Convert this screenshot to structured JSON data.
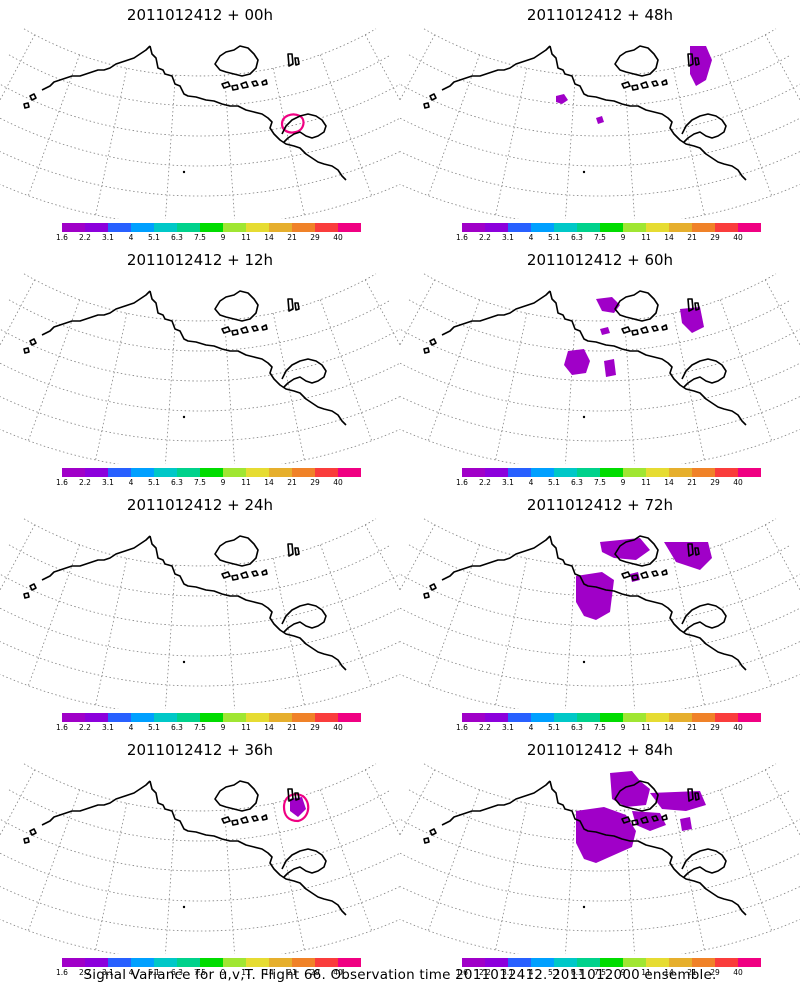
{
  "panels": [
    {
      "title": "2011012412 + 00h",
      "lead": "00h"
    },
    {
      "title": "2011012412 + 48h",
      "lead": "48h"
    },
    {
      "title": "2011012412 + 12h",
      "lead": "12h"
    },
    {
      "title": "2011012412 + 60h",
      "lead": "60h"
    },
    {
      "title": "2011012412 + 24h",
      "lead": "24h"
    },
    {
      "title": "2011012412 + 72h",
      "lead": "72h"
    },
    {
      "title": "2011012412 + 36h",
      "lead": "36h"
    },
    {
      "title": "2011012412 + 84h",
      "lead": "84h"
    }
  ],
  "colorbar": {
    "labels": [
      "1.6",
      "2.2",
      "3.1",
      "4",
      "5.1",
      "6.3",
      "7.5",
      "9",
      "11",
      "14",
      "21",
      "29",
      "40"
    ],
    "colors": [
      "#a000c8",
      "#8c00dc",
      "#2860ff",
      "#00a0ff",
      "#00c8c8",
      "#00d28c",
      "#00dc00",
      "#a0e632",
      "#e6dc32",
      "#e6af2d",
      "#f08228",
      "#fa3c3c",
      "#f00082"
    ]
  },
  "colors": {
    "variance_fill": "#a000c8",
    "max_contour": "#f00082",
    "coastline": "#000000",
    "grid": "#808080"
  },
  "caption": "Signal Variance for u,v,T. Flight 66. Observation time 2011012412. 2011012000 ensemble."
}
